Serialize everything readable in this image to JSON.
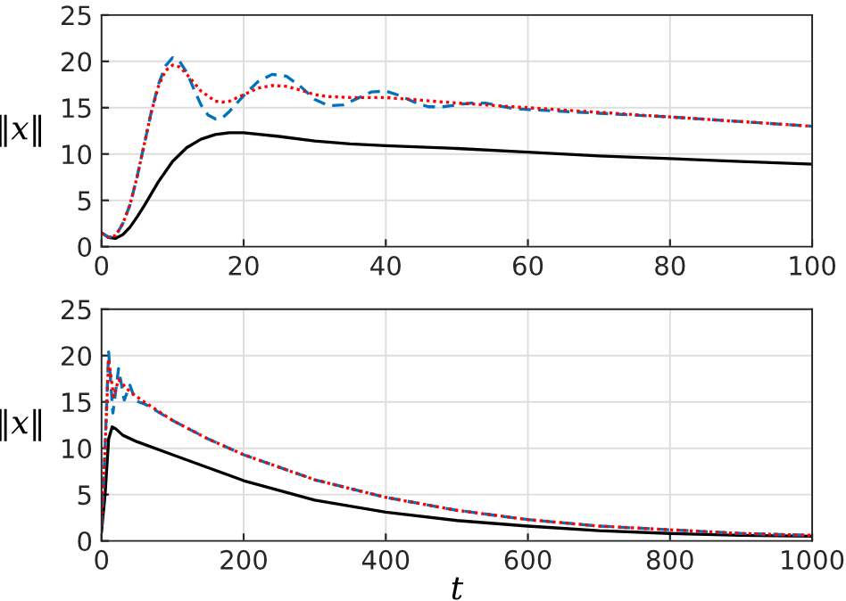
{
  "chart_data": [
    {
      "type": "line",
      "ylabel": "‖x‖",
      "xlim": [
        0,
        100
      ],
      "ylim": [
        0,
        25
      ],
      "xticks": [
        0,
        20,
        40,
        60,
        80,
        100
      ],
      "yticks": [
        0,
        5,
        10,
        15,
        20,
        25
      ],
      "grid": true,
      "series": [
        {
          "color": "#000000",
          "line_style": "solid",
          "x": [
            0,
            1,
            2,
            3,
            4,
            5,
            6,
            7,
            8,
            10,
            12,
            14,
            16,
            18,
            20,
            25,
            30,
            35,
            40,
            50,
            60,
            70,
            80,
            90,
            100
          ],
          "values": [
            1.5,
            1.0,
            0.9,
            1.3,
            2.1,
            3.2,
            4.4,
            5.7,
            7.0,
            9.2,
            10.7,
            11.6,
            12.1,
            12.3,
            12.3,
            11.9,
            11.4,
            11.1,
            10.9,
            10.6,
            10.2,
            9.8,
            9.5,
            9.2,
            8.9
          ]
        },
        {
          "color": "#0072bd",
          "line_style": "dashed",
          "x": [
            0,
            1,
            2,
            3,
            4,
            5,
            6,
            7,
            8,
            9,
            10,
            11,
            12,
            13,
            14,
            15,
            16,
            17,
            18,
            20,
            22,
            24,
            26,
            28,
            30,
            32,
            34,
            36,
            38,
            40,
            42,
            44,
            46,
            48,
            50,
            52,
            54,
            56,
            58,
            60,
            70,
            80,
            90,
            100
          ],
          "values": [
            1.5,
            1.0,
            1.2,
            2.5,
            4.5,
            7.5,
            11,
            14.5,
            17.5,
            19.5,
            20.4,
            20.0,
            18.8,
            17.0,
            15.3,
            14.2,
            13.8,
            13.9,
            14.6,
            16.3,
            17.8,
            18.6,
            18.4,
            17.3,
            15.9,
            15.2,
            15.3,
            16.0,
            16.7,
            16.8,
            16.3,
            15.6,
            15.1,
            15.1,
            15.3,
            15.5,
            15.5,
            15.2,
            14.9,
            14.8,
            14.4,
            14.0,
            13.5,
            13.0
          ]
        },
        {
          "color": "#ff0000",
          "line_style": "dotted",
          "x": [
            0,
            1,
            2,
            3,
            4,
            5,
            6,
            7,
            8,
            9,
            10,
            11,
            12,
            14,
            16,
            17,
            18,
            20,
            22,
            24,
            26,
            28,
            30,
            32,
            35,
            40,
            45,
            50,
            60,
            70,
            80,
            90,
            100
          ],
          "values": [
            1.5,
            1.0,
            1.2,
            2.5,
            4.5,
            7.5,
            11,
            14.5,
            17.3,
            19.0,
            19.6,
            19.4,
            18.6,
            16.8,
            15.7,
            15.6,
            15.7,
            16.4,
            17.1,
            17.4,
            17.3,
            16.9,
            16.4,
            16.2,
            16.1,
            16.1,
            15.8,
            15.5,
            15.0,
            14.5,
            14.0,
            13.5,
            13.0
          ]
        }
      ]
    },
    {
      "type": "line",
      "xlabel": "t",
      "ylabel": "‖x‖",
      "xlim": [
        0,
        1000
      ],
      "ylim": [
        0,
        25
      ],
      "xticks": [
        0,
        200,
        400,
        600,
        800,
        1000
      ],
      "yticks": [
        0,
        5,
        10,
        15,
        20,
        25
      ],
      "grid": true,
      "series": [
        {
          "color": "#000000",
          "line_style": "solid",
          "x": [
            0,
            5,
            10,
            15,
            20,
            30,
            50,
            100,
            150,
            200,
            300,
            400,
            500,
            600,
            700,
            800,
            900,
            1000
          ],
          "values": [
            1,
            5,
            11,
            12.3,
            12.1,
            11.4,
            10.7,
            9.3,
            7.9,
            6.5,
            4.4,
            3.1,
            2.2,
            1.6,
            1.1,
            0.8,
            0.6,
            0.5
          ]
        },
        {
          "color": "#0072bd",
          "line_style": "dashed",
          "x": [
            0,
            5,
            10,
            16,
            24,
            32,
            40,
            48,
            60,
            100,
            150,
            200,
            300,
            400,
            500,
            600,
            700,
            800,
            900,
            1000
          ],
          "values": [
            1.5,
            10,
            20.4,
            13.8,
            18.6,
            15.2,
            16.8,
            15.1,
            14.8,
            13.0,
            11.0,
            9.3,
            6.6,
            4.7,
            3.3,
            2.3,
            1.6,
            1.2,
            0.8,
            0.6
          ]
        },
        {
          "color": "#ff0000",
          "line_style": "dotted",
          "x": [
            0,
            5,
            10,
            17,
            24,
            40,
            60,
            100,
            150,
            200,
            300,
            400,
            500,
            600,
            700,
            800,
            900,
            1000
          ],
          "values": [
            1.5,
            10,
            19.6,
            15.6,
            17.4,
            16.1,
            15.0,
            13.0,
            11.0,
            9.3,
            6.6,
            4.7,
            3.3,
            2.3,
            1.6,
            1.2,
            0.8,
            0.6
          ]
        }
      ]
    }
  ]
}
